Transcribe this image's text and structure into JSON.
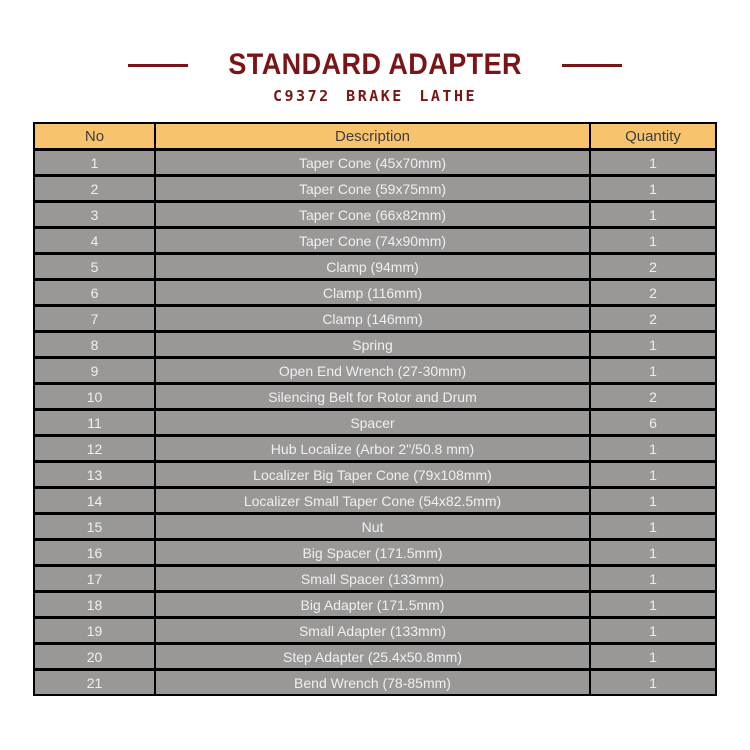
{
  "header": {
    "title": "STANDARD ADAPTER",
    "subtitle": "C9372 BRAKE LATHE"
  },
  "table": {
    "columns": [
      "No",
      "Description",
      "Quantity"
    ],
    "rows": [
      {
        "no": "1",
        "description": "Taper Cone (45x70mm)",
        "quantity": "1"
      },
      {
        "no": "2",
        "description": "Taper Cone (59x75mm)",
        "quantity": "1"
      },
      {
        "no": "3",
        "description": "Taper Cone (66x82mm)",
        "quantity": "1"
      },
      {
        "no": "4",
        "description": "Taper Cone (74x90mm)",
        "quantity": "1"
      },
      {
        "no": "5",
        "description": "Clamp (94mm)",
        "quantity": "2"
      },
      {
        "no": "6",
        "description": "Clamp (116mm)",
        "quantity": "2"
      },
      {
        "no": "7",
        "description": "Clamp (146mm)",
        "quantity": "2"
      },
      {
        "no": "8",
        "description": "Spring",
        "quantity": "1"
      },
      {
        "no": "9",
        "description": "Open End Wrench (27-30mm)",
        "quantity": "1"
      },
      {
        "no": "10",
        "description": "Silencing Belt for Rotor and Drum",
        "quantity": "2"
      },
      {
        "no": "11",
        "description": "Spacer",
        "quantity": "6"
      },
      {
        "no": "12",
        "description": "Hub Localize (Arbor 2\"/50.8 mm)",
        "quantity": "1"
      },
      {
        "no": "13",
        "description": "Localizer Big Taper Cone (79x108mm)",
        "quantity": "1"
      },
      {
        "no": "14",
        "description": "Localizer Small Taper Cone (54x82.5mm)",
        "quantity": "1"
      },
      {
        "no": "15",
        "description": "Nut",
        "quantity": "1"
      },
      {
        "no": "16",
        "description": "Big Spacer (171.5mm)",
        "quantity": "1"
      },
      {
        "no": "17",
        "description": "Small Spacer (133mm)",
        "quantity": "1"
      },
      {
        "no": "18",
        "description": "Big Adapter (171.5mm)",
        "quantity": "1"
      },
      {
        "no": "19",
        "description": "Small Adapter (133mm)",
        "quantity": "1"
      },
      {
        "no": "20",
        "description": "Step Adapter (25.4x50.8mm)",
        "quantity": "1"
      },
      {
        "no": "21",
        "description": "Bend Wrench (78-85mm)",
        "quantity": "1"
      }
    ]
  },
  "colors": {
    "title": "#7a1517",
    "header_bg": "#f8c36d",
    "header_text": "#3e3e3e",
    "row_bg": "#9a9897",
    "row_text": "#efefef",
    "border": "#000000"
  }
}
